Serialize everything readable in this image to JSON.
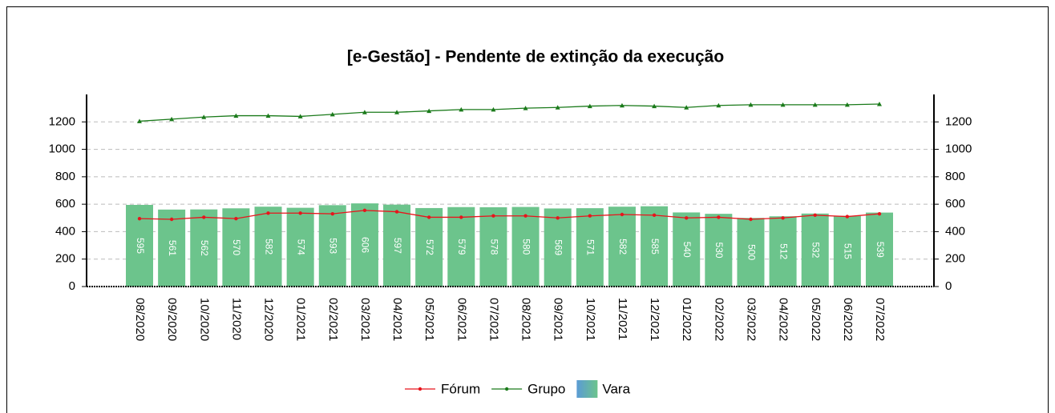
{
  "chart_data": {
    "type": "bar_line",
    "title": "[e-Gestão]  - Pendente de extinção da execução",
    "categories": [
      "08/2020",
      "09/2020",
      "10/2020",
      "11/2020",
      "12/2020",
      "01/2021",
      "02/2021",
      "03/2021",
      "04/2021",
      "05/2021",
      "06/2021",
      "07/2021",
      "08/2021",
      "09/2021",
      "10/2021",
      "11/2021",
      "12/2021",
      "01/2022",
      "02/2022",
      "03/2022",
      "04/2022",
      "05/2022",
      "06/2022",
      "07/2022"
    ],
    "series": [
      {
        "name": "Fórum",
        "type": "line",
        "color": "#e8141c",
        "values": [
          495,
          490,
          505,
          495,
          535,
          535,
          530,
          555,
          545,
          505,
          505,
          515,
          515,
          500,
          515,
          525,
          520,
          500,
          505,
          490,
          500,
          520,
          510,
          530
        ]
      },
      {
        "name": "Grupo",
        "type": "line",
        "color": "#1a7a1a",
        "values": [
          1205,
          1220,
          1235,
          1245,
          1245,
          1240,
          1255,
          1270,
          1270,
          1280,
          1290,
          1290,
          1300,
          1305,
          1315,
          1320,
          1315,
          1305,
          1320,
          1325,
          1325,
          1325,
          1325,
          1330
        ]
      },
      {
        "name": "Vara",
        "type": "bar",
        "color": "#6cc48c",
        "values": [
          595,
          561,
          562,
          570,
          582,
          574,
          593,
          606,
          597,
          572,
          579,
          578,
          580,
          569,
          571,
          582,
          585,
          540,
          530,
          500,
          512,
          532,
          515,
          539
        ]
      }
    ],
    "ylim": [
      0,
      1400
    ],
    "yticks": [
      0,
      200,
      400,
      600,
      800,
      1000,
      1200
    ],
    "grid": true
  }
}
